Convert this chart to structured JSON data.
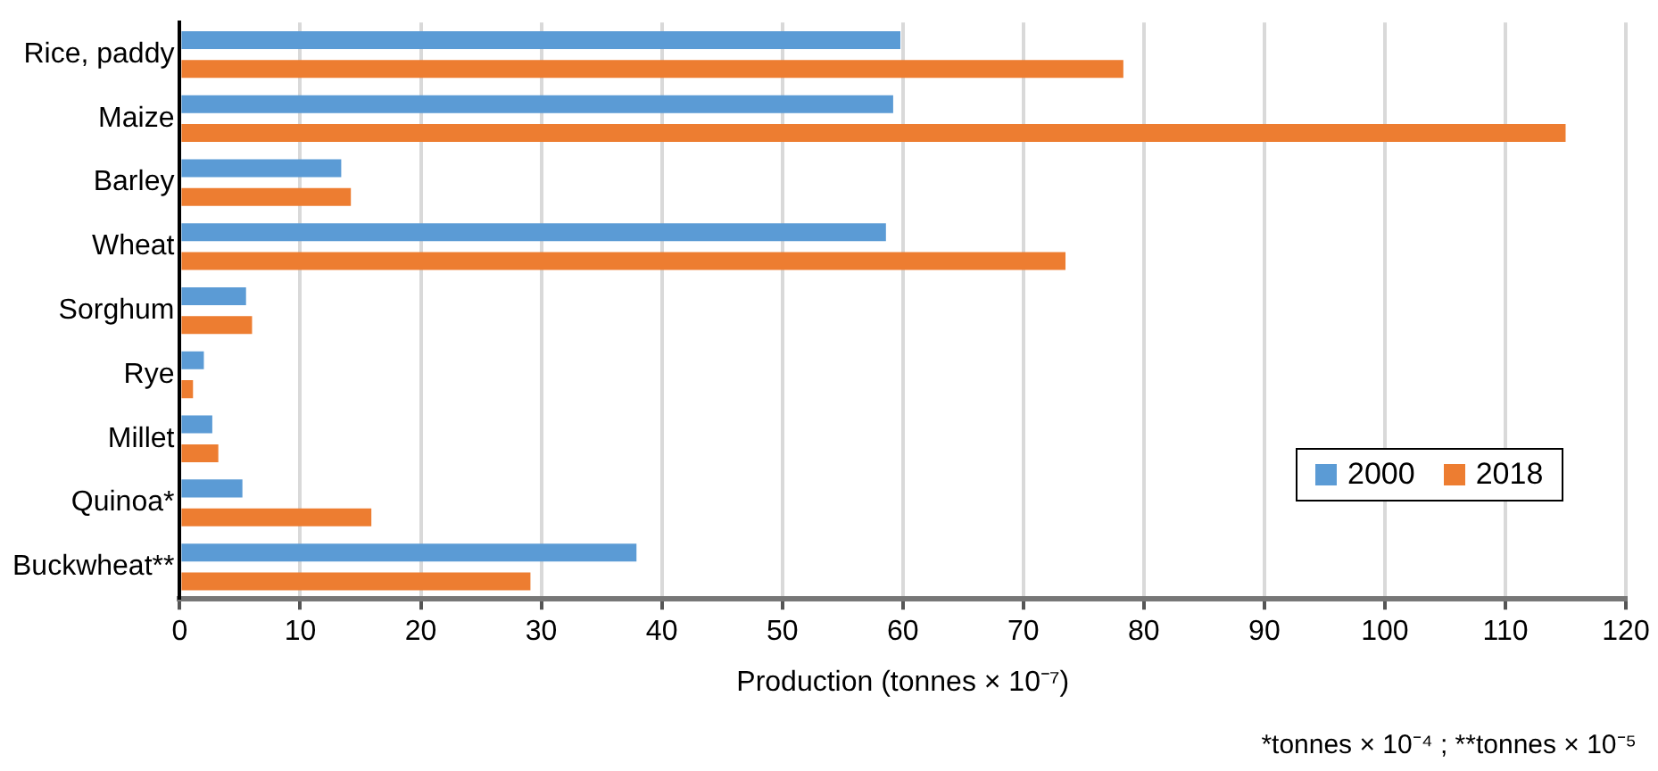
{
  "chart_data": {
    "type": "bar",
    "orientation": "horizontal",
    "xlabel": "Production (tonnes × 10⁻⁷)",
    "categories": [
      "Rice, paddy",
      "Maize",
      "Barley",
      "Wheat",
      "Sorghum",
      "Rye",
      "Millet",
      "Quinoa*",
      "Buckwheat**"
    ],
    "series": [
      {
        "name": "2000",
        "color": "#5b9bd5",
        "values": [
          59.8,
          59.2,
          13.4,
          58.6,
          5.5,
          2.0,
          2.7,
          5.2,
          37.9
        ]
      },
      {
        "name": "2018",
        "color": "#ed7d31",
        "values": [
          78.3,
          115,
          14.2,
          73.5,
          6.0,
          1.1,
          3.2,
          15.9,
          29.1
        ]
      }
    ],
    "xlim": [
      0,
      120
    ],
    "xticks": [
      0,
      10,
      20,
      30,
      40,
      50,
      60,
      70,
      80,
      90,
      100,
      110,
      120
    ],
    "grid": "x",
    "legend": "bottom right",
    "annotations": [
      "*tonnes × 10⁻⁴ ; **tonnes × 10⁻⁵"
    ]
  }
}
